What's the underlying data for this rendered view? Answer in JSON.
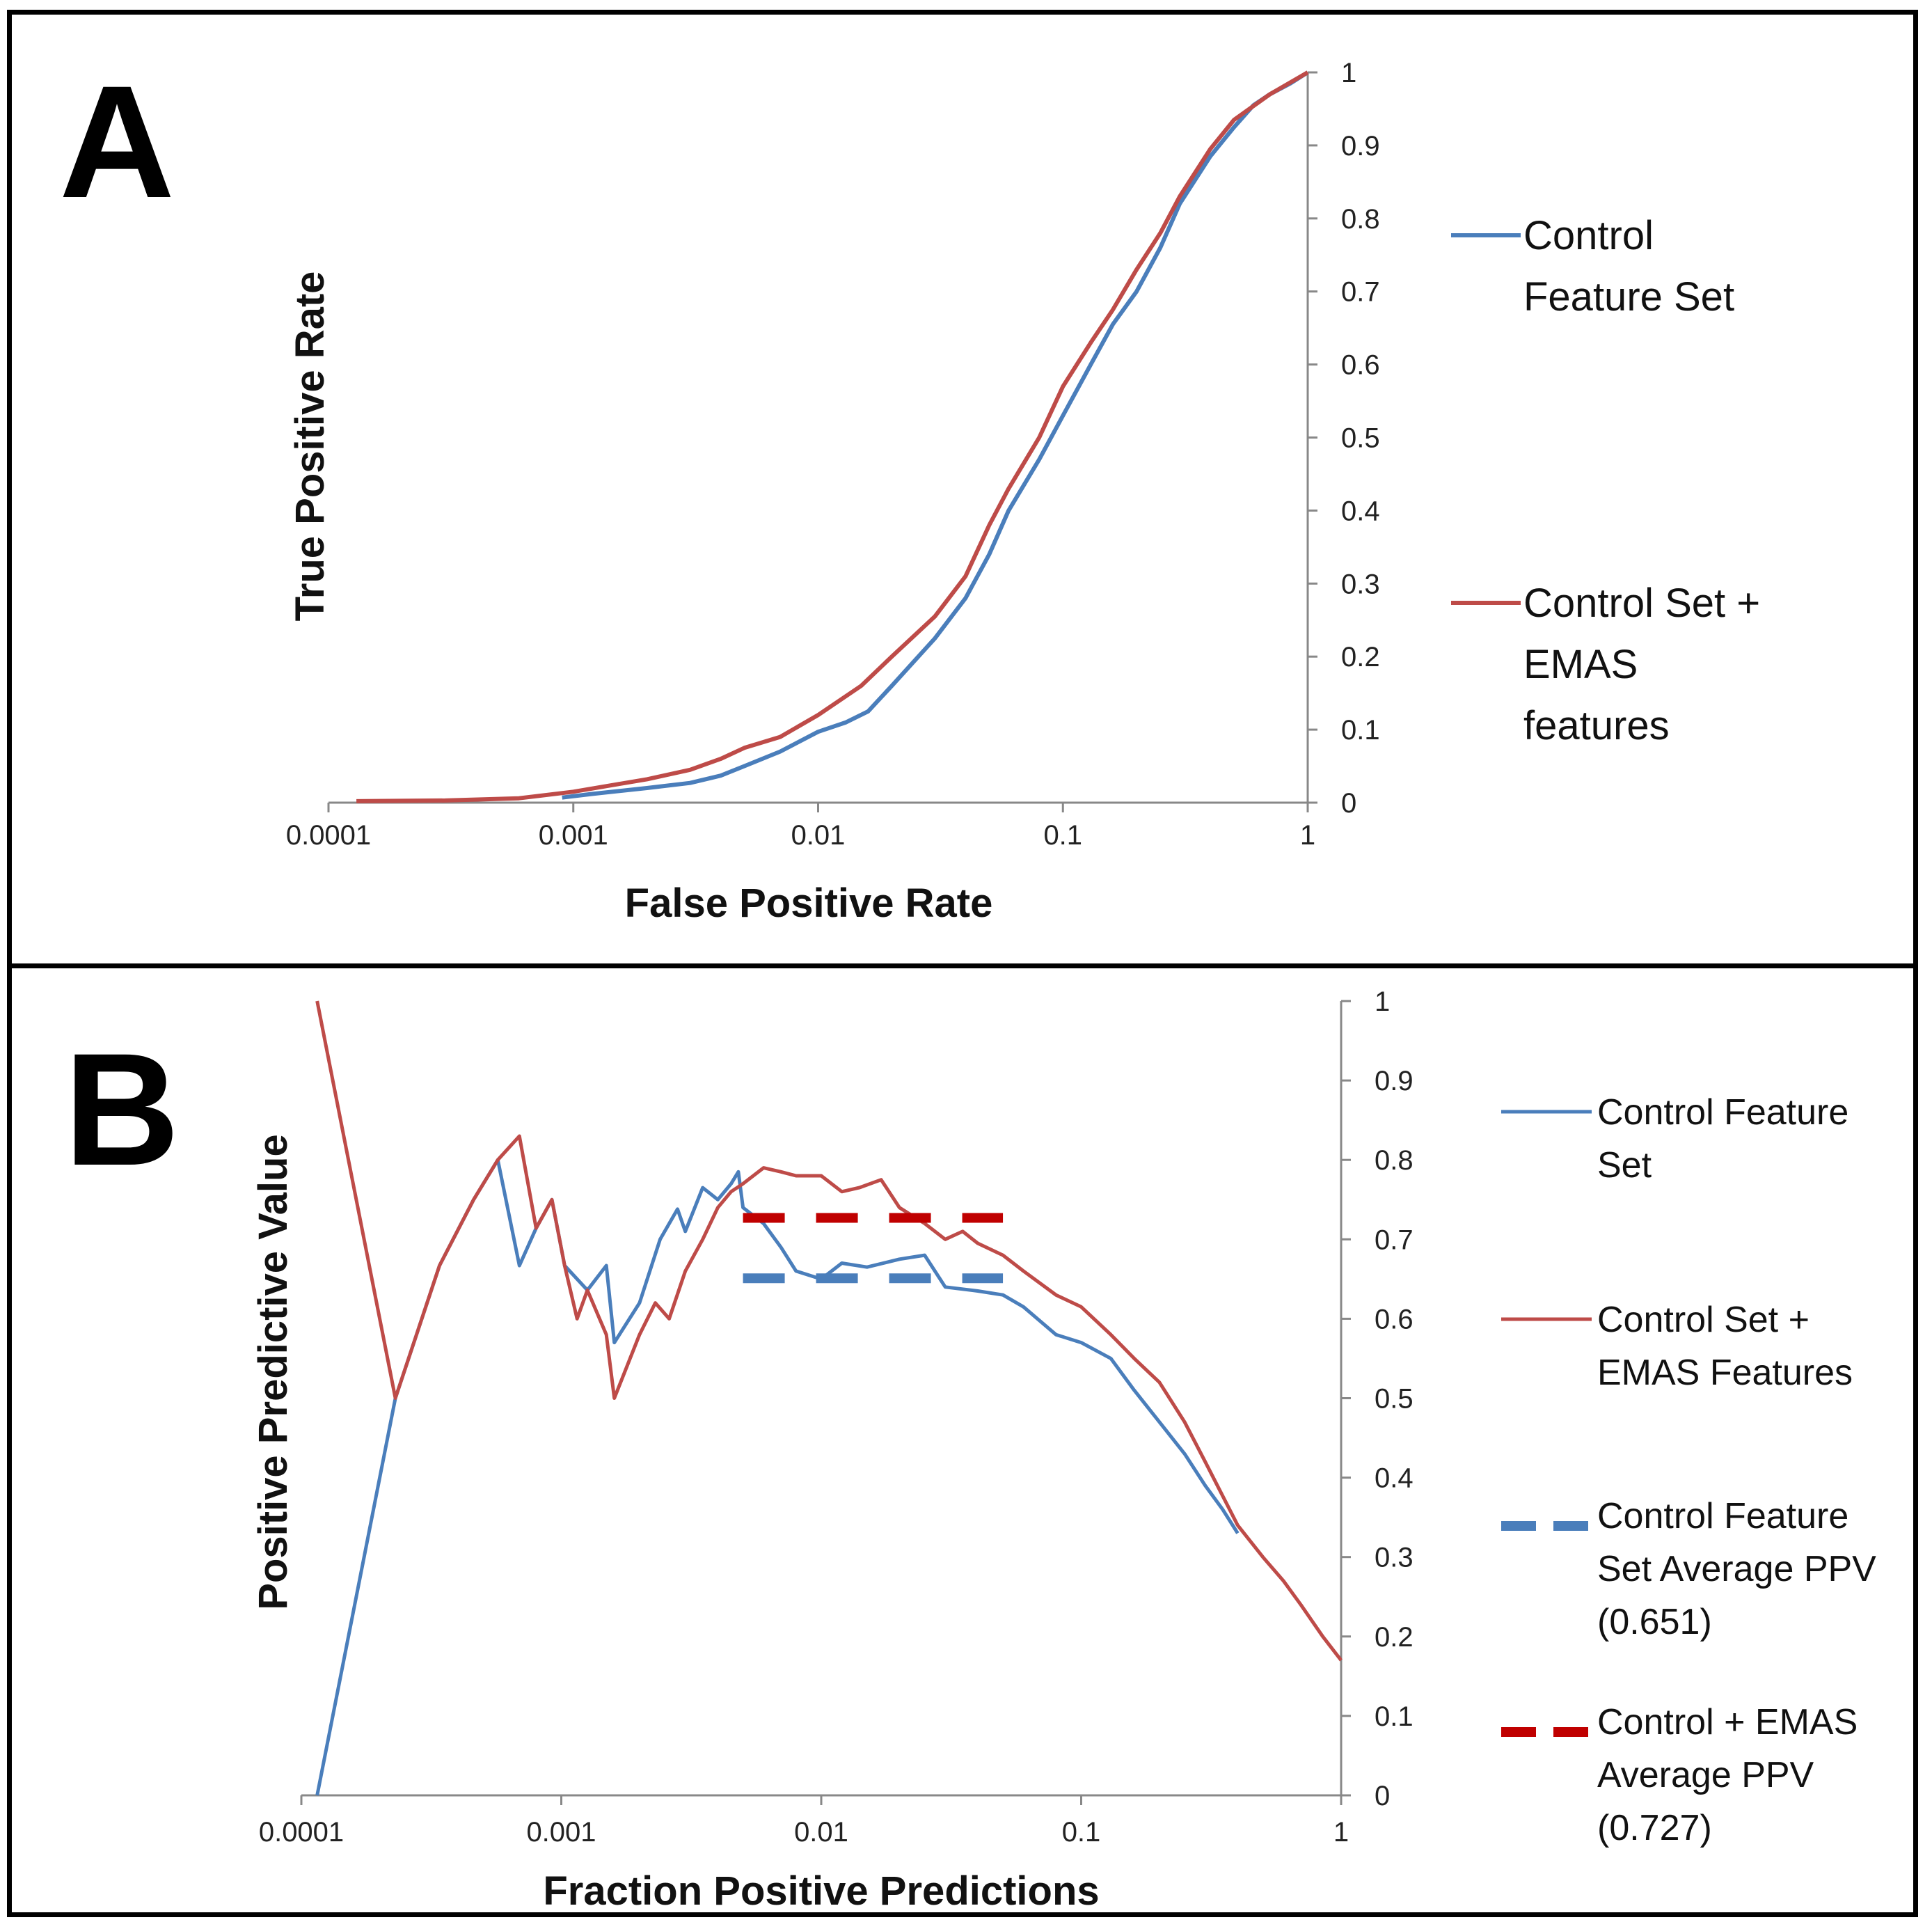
{
  "chart_data": [
    {
      "panel": "A",
      "type": "line",
      "xscale": "log",
      "xlabel": "False Positive Rate",
      "ylabel": "True Positive Rate",
      "xlim": [
        0.0001,
        1
      ],
      "ylim": [
        0,
        1
      ],
      "x_ticks": [
        "0.0001",
        "0.001",
        "0.01",
        "0.1",
        "1"
      ],
      "y_ticks": [
        "0",
        "0.1",
        "0.2",
        "0.3",
        "0.4",
        "0.5",
        "0.6",
        "0.7",
        "0.8",
        "0.9",
        "1"
      ],
      "legend_position": "right",
      "series": [
        {
          "name": "Control Feature Set",
          "legend_lines": [
            "Control",
            "Feature Set"
          ],
          "color": "#4a7ebb",
          "style": "solid",
          "points": [
            [
              0.0009,
              0.007
            ],
            [
              0.0012,
              0.012
            ],
            [
              0.002,
              0.02
            ],
            [
              0.003,
              0.027
            ],
            [
              0.004,
              0.037
            ],
            [
              0.005,
              0.05
            ],
            [
              0.007,
              0.07
            ],
            [
              0.01,
              0.097
            ],
            [
              0.013,
              0.11
            ],
            [
              0.016,
              0.125
            ],
            [
              0.02,
              0.16
            ],
            [
              0.03,
              0.225
            ],
            [
              0.04,
              0.28
            ],
            [
              0.05,
              0.34
            ],
            [
              0.06,
              0.4
            ],
            [
              0.08,
              0.47
            ],
            [
              0.1,
              0.53
            ],
            [
              0.13,
              0.6
            ],
            [
              0.16,
              0.655
            ],
            [
              0.2,
              0.7
            ],
            [
              0.25,
              0.76
            ],
            [
              0.3,
              0.82
            ],
            [
              0.4,
              0.885
            ],
            [
              0.5,
              0.925
            ],
            [
              0.6,
              0.955
            ],
            [
              0.7,
              0.97
            ],
            [
              0.85,
              0.985
            ],
            [
              1.0,
              1.0
            ]
          ]
        },
        {
          "name": "Control Set + EMAS features",
          "legend_lines": [
            "Control Set +",
            "EMAS",
            "features"
          ],
          "color": "#be4b48",
          "style": "solid",
          "points": [
            [
              0.00013,
              0.002
            ],
            [
              0.0003,
              0.003
            ],
            [
              0.0006,
              0.006
            ],
            [
              0.001,
              0.015
            ],
            [
              0.0015,
              0.025
            ],
            [
              0.002,
              0.032
            ],
            [
              0.003,
              0.045
            ],
            [
              0.004,
              0.06
            ],
            [
              0.005,
              0.075
            ],
            [
              0.007,
              0.09
            ],
            [
              0.01,
              0.12
            ],
            [
              0.015,
              0.16
            ],
            [
              0.02,
              0.2
            ],
            [
              0.03,
              0.255
            ],
            [
              0.04,
              0.31
            ],
            [
              0.05,
              0.38
            ],
            [
              0.06,
              0.43
            ],
            [
              0.08,
              0.5
            ],
            [
              0.1,
              0.57
            ],
            [
              0.13,
              0.63
            ],
            [
              0.16,
              0.675
            ],
            [
              0.2,
              0.73
            ],
            [
              0.25,
              0.78
            ],
            [
              0.3,
              0.83
            ],
            [
              0.4,
              0.895
            ],
            [
              0.5,
              0.935
            ],
            [
              0.7,
              0.97
            ],
            [
              1.0,
              1.0
            ]
          ]
        }
      ]
    },
    {
      "panel": "B",
      "type": "line",
      "xscale": "log",
      "xlabel": "Fraction Positive Predictions",
      "ylabel": "Positive Predictive Value",
      "xlim": [
        0.0001,
        1
      ],
      "ylim": [
        0,
        1
      ],
      "x_ticks": [
        "0.0001",
        "0.001",
        "0.01",
        "0.1",
        "1"
      ],
      "y_ticks": [
        "0",
        "0.1",
        "0.2",
        "0.3",
        "0.4",
        "0.5",
        "0.6",
        "0.7",
        "0.8",
        "0.9",
        "1"
      ],
      "legend_position": "right",
      "series": [
        {
          "name": "Control Feature Set",
          "legend_lines": [
            "Control Feature",
            "Set"
          ],
          "color": "#4a7ebb",
          "style": "solid",
          "points": [
            [
              0.000115,
              0.0
            ],
            [
              0.00023,
              0.5
            ],
            [
              0.00034,
              0.667
            ],
            [
              0.00046,
              0.75
            ],
            [
              0.00057,
              0.8
            ],
            [
              0.00069,
              0.667
            ],
            [
              0.0008,
              0.714
            ],
            [
              0.00092,
              0.75
            ],
            [
              0.00103,
              0.667
            ],
            [
              0.00126,
              0.636
            ],
            [
              0.00149,
              0.667
            ],
            [
              0.0016,
              0.57
            ],
            [
              0.002,
              0.62
            ],
            [
              0.0024,
              0.7
            ],
            [
              0.0028,
              0.738
            ],
            [
              0.003,
              0.71
            ],
            [
              0.0035,
              0.765
            ],
            [
              0.004,
              0.75
            ],
            [
              0.0045,
              0.77
            ],
            [
              0.0048,
              0.785
            ],
            [
              0.005,
              0.74
            ],
            [
              0.006,
              0.72
            ],
            [
              0.007,
              0.69
            ],
            [
              0.008,
              0.66
            ],
            [
              0.01,
              0.65
            ],
            [
              0.012,
              0.67
            ],
            [
              0.015,
              0.665
            ],
            [
              0.02,
              0.675
            ],
            [
              0.025,
              0.68
            ],
            [
              0.03,
              0.64
            ],
            [
              0.04,
              0.635
            ],
            [
              0.05,
              0.63
            ],
            [
              0.06,
              0.615
            ],
            [
              0.08,
              0.58
            ],
            [
              0.1,
              0.57
            ],
            [
              0.13,
              0.55
            ],
            [
              0.16,
              0.51
            ],
            [
              0.2,
              0.47
            ],
            [
              0.25,
              0.43
            ],
            [
              0.3,
              0.39
            ],
            [
              0.35,
              0.36
            ],
            [
              0.4,
              0.33
            ]
          ]
        },
        {
          "name": "Control Set + EMAS Features",
          "legend_lines": [
            "Control Set +",
            "EMAS Features"
          ],
          "color": "#be4b48",
          "style": "solid",
          "points": [
            [
              0.000115,
              1.0
            ],
            [
              0.00023,
              0.5
            ],
            [
              0.00034,
              0.667
            ],
            [
              0.00046,
              0.75
            ],
            [
              0.00057,
              0.8
            ],
            [
              0.00069,
              0.83
            ],
            [
              0.0008,
              0.714
            ],
            [
              0.00092,
              0.75
            ],
            [
              0.00103,
              0.667
            ],
            [
              0.00115,
              0.6
            ],
            [
              0.00126,
              0.636
            ],
            [
              0.00149,
              0.58
            ],
            [
              0.0016,
              0.5
            ],
            [
              0.002,
              0.58
            ],
            [
              0.0023,
              0.62
            ],
            [
              0.0026,
              0.6
            ],
            [
              0.003,
              0.66
            ],
            [
              0.0035,
              0.7
            ],
            [
              0.004,
              0.74
            ],
            [
              0.0045,
              0.76
            ],
            [
              0.005,
              0.77
            ],
            [
              0.006,
              0.79
            ],
            [
              0.007,
              0.785
            ],
            [
              0.008,
              0.78
            ],
            [
              0.01,
              0.78
            ],
            [
              0.012,
              0.76
            ],
            [
              0.014,
              0.765
            ],
            [
              0.017,
              0.775
            ],
            [
              0.02,
              0.74
            ],
            [
              0.025,
              0.72
            ],
            [
              0.03,
              0.7
            ],
            [
              0.035,
              0.71
            ],
            [
              0.04,
              0.695
            ],
            [
              0.05,
              0.68
            ],
            [
              0.06,
              0.66
            ],
            [
              0.08,
              0.63
            ],
            [
              0.1,
              0.615
            ],
            [
              0.13,
              0.58
            ],
            [
              0.16,
              0.55
            ],
            [
              0.2,
              0.52
            ],
            [
              0.25,
              0.47
            ],
            [
              0.3,
              0.42
            ],
            [
              0.4,
              0.34
            ],
            [
              0.5,
              0.3
            ],
            [
              0.6,
              0.27
            ],
            [
              0.7,
              0.24
            ],
            [
              0.85,
              0.2
            ],
            [
              1.0,
              0.17
            ]
          ]
        },
        {
          "name": "Control Feature Set Average PPV (0.651)",
          "legend_lines": [
            "Control Feature",
            "Set Average PPV",
            "(0.651)"
          ],
          "color": "#4a7ebb",
          "style": "dashed",
          "value": 0.651,
          "x_range": [
            0.005,
            0.05
          ]
        },
        {
          "name": "Control + EMAS Average PPV (0.727)",
          "legend_lines": [
            "Control + EMAS",
            "Average PPV",
            "(0.727)"
          ],
          "color": "#c00000",
          "style": "dashed",
          "value": 0.727,
          "x_range": [
            0.005,
            0.05
          ]
        }
      ]
    }
  ]
}
